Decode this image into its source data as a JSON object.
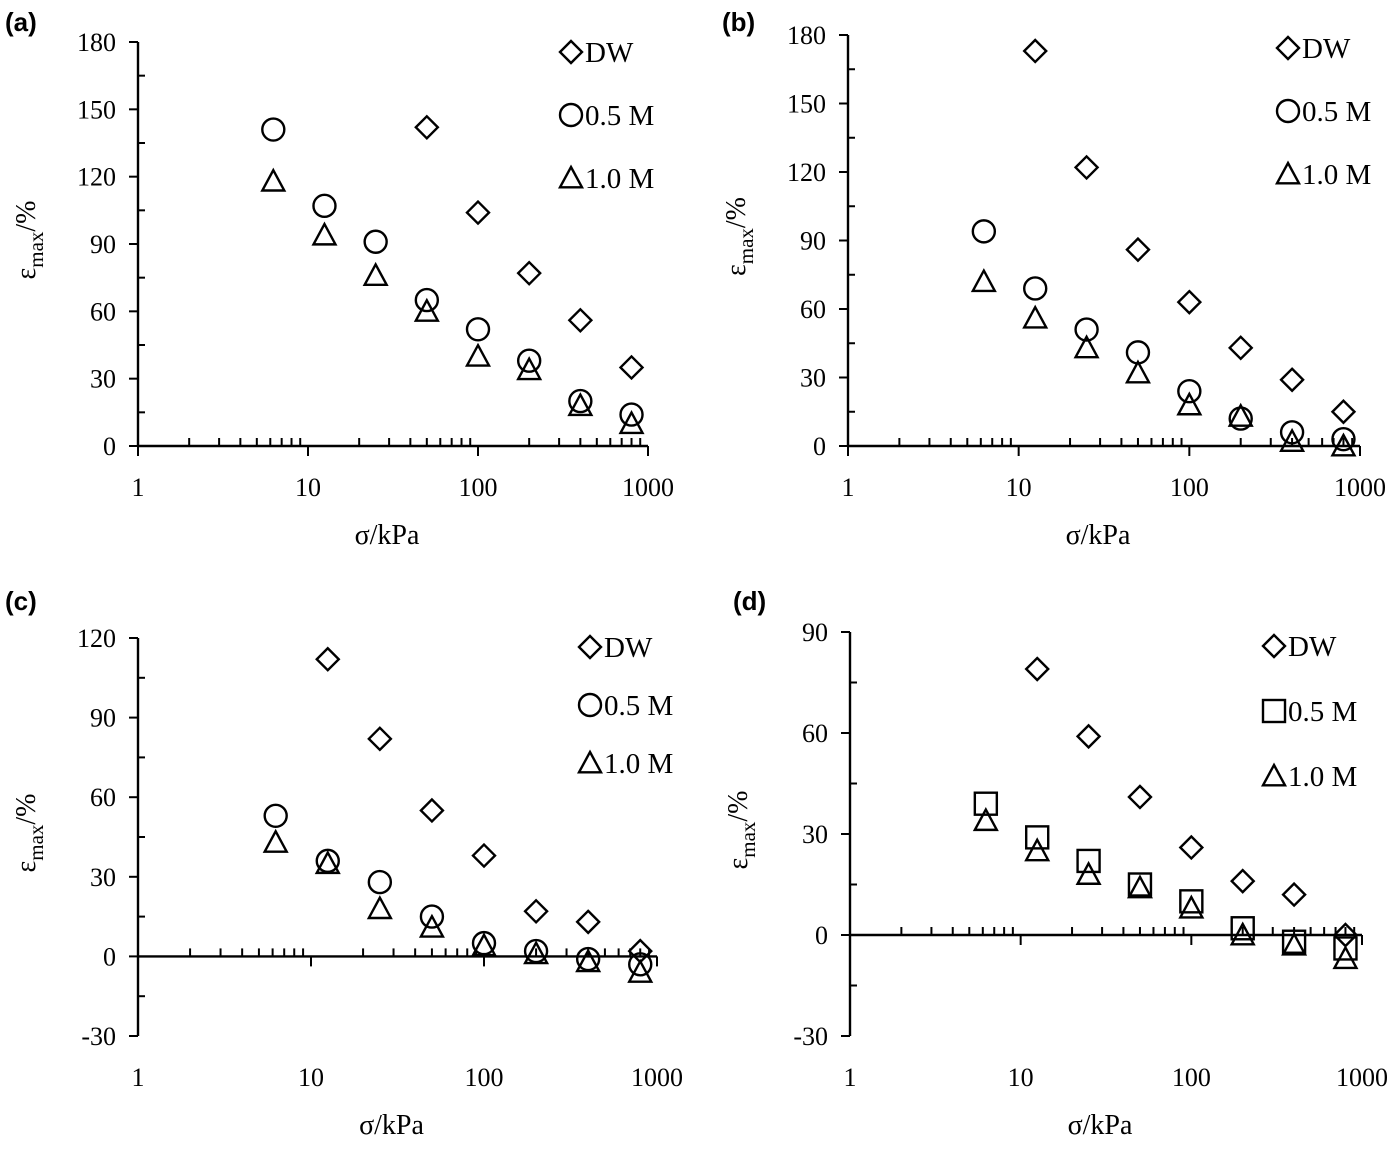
{
  "chart_data": [
    {
      "panel": "(a)",
      "type": "scatter",
      "xlabel": "σ/kPa",
      "ylabel_main": "ε",
      "ylabel_sub": "max",
      "ylabel_unit": "/%",
      "xscale": "log",
      "xlim": [
        1,
        1000
      ],
      "xticks": [
        "1",
        "10",
        "100",
        "1000"
      ],
      "ylim": [
        0,
        180
      ],
      "yticks": [
        "0",
        "30",
        "60",
        "90",
        "120",
        "150",
        "180"
      ],
      "legend_position": "top-right",
      "series": [
        {
          "name": "DW",
          "marker": "diamond",
          "x": [
            50,
            100,
            200,
            400,
            800
          ],
          "y": [
            142,
            104,
            77,
            56,
            35
          ]
        },
        {
          "name": "0.5 M",
          "marker": "circle",
          "x": [
            6.25,
            12.5,
            25,
            50,
            100,
            200,
            400,
            800
          ],
          "y": [
            141,
            107,
            91,
            65,
            52,
            38,
            20,
            14
          ]
        },
        {
          "name": "1.0 M",
          "marker": "triangle",
          "x": [
            6.25,
            12.5,
            25,
            50,
            100,
            200,
            400,
            800
          ],
          "y": [
            118,
            94,
            76,
            60,
            40,
            34,
            18,
            10
          ]
        }
      ]
    },
    {
      "panel": "(b)",
      "type": "scatter",
      "xlabel": "σ/kPa",
      "ylabel_main": "ε",
      "ylabel_sub": "max",
      "ylabel_unit": "/%",
      "xscale": "log",
      "xlim": [
        1,
        1000
      ],
      "xticks": [
        "1",
        "10",
        "100",
        "1000"
      ],
      "ylim": [
        0,
        180
      ],
      "yticks": [
        "0",
        "30",
        "60",
        "90",
        "120",
        "150",
        "180"
      ],
      "legend_position": "top-right",
      "series": [
        {
          "name": "DW",
          "marker": "diamond",
          "x": [
            12.5,
            25,
            50,
            100,
            200,
            400,
            800
          ],
          "y": [
            173,
            122,
            86,
            63,
            43,
            29,
            15
          ]
        },
        {
          "name": "0.5 M",
          "marker": "circle",
          "x": [
            6.25,
            12.5,
            25,
            50,
            100,
            200,
            400,
            800
          ],
          "y": [
            94,
            69,
            51,
            41,
            24,
            12,
            6,
            3
          ]
        },
        {
          "name": "1.0 M",
          "marker": "triangle",
          "x": [
            6.25,
            12.5,
            25,
            50,
            100,
            200,
            400,
            800
          ],
          "y": [
            72,
            56,
            43,
            32,
            18,
            13,
            2,
            0
          ]
        }
      ]
    },
    {
      "panel": "(c)",
      "type": "scatter",
      "xlabel": "σ/kPa",
      "ylabel_main": "ε",
      "ylabel_sub": "max",
      "ylabel_unit": "/%",
      "xscale": "log",
      "xlim": [
        1,
        1000
      ],
      "xticks": [
        "1",
        "10",
        "100",
        "1000"
      ],
      "ylim": [
        -30,
        120
      ],
      "yticks": [
        "-30",
        "0",
        "30",
        "60",
        "90",
        "120"
      ],
      "legend_position": "top-right",
      "series": [
        {
          "name": "DW",
          "marker": "diamond",
          "x": [
            12.5,
            25,
            50,
            100,
            200,
            400,
            800
          ],
          "y": [
            112,
            82,
            55,
            38,
            17,
            13,
            2
          ]
        },
        {
          "name": "0.5 M",
          "marker": "circle",
          "x": [
            6.25,
            12.5,
            25,
            50,
            100,
            200,
            400,
            800
          ],
          "y": [
            53,
            36,
            28,
            15,
            5,
            2,
            -1,
            -3
          ]
        },
        {
          "name": "1.0 M",
          "marker": "triangle",
          "x": [
            6.25,
            12.5,
            25,
            50,
            100,
            200,
            400,
            800
          ],
          "y": [
            43,
            35,
            18,
            11,
            4,
            1,
            -2,
            -6
          ]
        }
      ]
    },
    {
      "panel": "(d)",
      "type": "scatter",
      "xlabel": "σ/kPa",
      "ylabel_main": "ε",
      "ylabel_sub": "max",
      "ylabel_unit": "/%",
      "xscale": "log",
      "xlim": [
        1,
        1000
      ],
      "xticks": [
        "1",
        "10",
        "100",
        "1000"
      ],
      "ylim": [
        -30,
        90
      ],
      "yticks": [
        "-30",
        "0",
        "30",
        "60",
        "90"
      ],
      "legend_position": "top-right",
      "series": [
        {
          "name": "DW",
          "marker": "diamond",
          "x": [
            12.5,
            25,
            50,
            100,
            200,
            400,
            800
          ],
          "y": [
            79,
            59,
            41,
            26,
            16,
            12,
            0
          ]
        },
        {
          "name": "0.5 M",
          "marker": "square",
          "x": [
            6.25,
            12.5,
            25,
            50,
            100,
            200,
            400,
            800
          ],
          "y": [
            39,
            29,
            22,
            15,
            10,
            2,
            -2,
            -4
          ]
        },
        {
          "name": "1.0 M",
          "marker": "triangle",
          "x": [
            6.25,
            12.5,
            25,
            50,
            100,
            200,
            400,
            800
          ],
          "y": [
            34,
            25,
            18,
            14,
            8,
            0,
            -3,
            -7
          ]
        }
      ]
    }
  ]
}
